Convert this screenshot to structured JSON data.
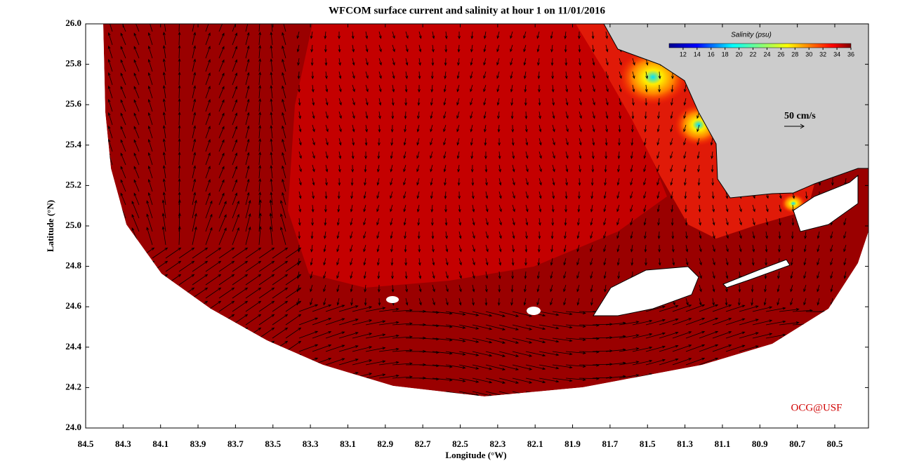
{
  "chart_data": {
    "type": "map",
    "title": "WFCOM surface current and salinity at hour 1 on 11/01/2016",
    "xlabel": "Longitude (°W)",
    "ylabel": "Latitude (°N)",
    "xlim": [
      84.5,
      80.32
    ],
    "ylim": [
      24.0,
      26.0
    ],
    "xticks": [
      84.5,
      84.3,
      84.1,
      83.9,
      83.7,
      83.5,
      83.3,
      83.1,
      82.9,
      82.7,
      82.5,
      82.3,
      82.1,
      81.9,
      81.7,
      81.5,
      81.3,
      81.1,
      80.9,
      80.7,
      80.5
    ],
    "yticks": [
      {
        "value": 24.0,
        "label": "24.0"
      },
      24.2,
      24.4,
      24.6,
      24.8,
      {
        "value": 25.0,
        "label": "25.0"
      },
      25.2,
      25.4,
      25.6,
      25.8,
      {
        "value": 26.0,
        "label": "26.0"
      }
    ],
    "colorbar": {
      "label": "Salinity (psu)",
      "lim": [
        10,
        36
      ],
      "ticks": [
        12,
        14,
        16,
        18,
        20,
        22,
        24,
        26,
        28,
        30,
        32,
        34,
        36
      ]
    },
    "scale_label": "50 cm/s",
    "credit": "OCG@USF"
  }
}
